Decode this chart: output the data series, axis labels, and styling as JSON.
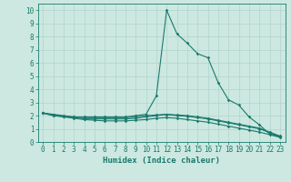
{
  "xlabel": "Humidex (Indice chaleur)",
  "xlim": [
    -0.5,
    23.5
  ],
  "ylim": [
    0,
    10.5
  ],
  "xticks": [
    0,
    1,
    2,
    3,
    4,
    5,
    6,
    7,
    8,
    9,
    10,
    11,
    12,
    13,
    14,
    15,
    16,
    17,
    18,
    19,
    20,
    21,
    22,
    23
  ],
  "yticks": [
    0,
    1,
    2,
    3,
    4,
    5,
    6,
    7,
    8,
    9,
    10
  ],
  "background_color": "#cce8e0",
  "plot_bg_color": "#cce8e0",
  "line_color": "#1a7a6e",
  "grid_color": "#b0d4cc",
  "line1_x": [
    0,
    1,
    2,
    3,
    4,
    5,
    6,
    7,
    8,
    9,
    10,
    11,
    12,
    13,
    14,
    15,
    16,
    17,
    18,
    19,
    20,
    21,
    22,
    23
  ],
  "line1_y": [
    2.2,
    2.1,
    2.0,
    1.9,
    1.9,
    1.9,
    1.9,
    1.9,
    1.9,
    2.0,
    2.1,
    3.5,
    10.0,
    8.2,
    7.5,
    6.7,
    6.4,
    4.5,
    3.2,
    2.8,
    1.9,
    1.3,
    0.6,
    0.4
  ],
  "line2_x": [
    0,
    1,
    2,
    3,
    4,
    5,
    6,
    7,
    8,
    9,
    10,
    11,
    12,
    13,
    14,
    15,
    16,
    17,
    18,
    19,
    20,
    21,
    22,
    23
  ],
  "line2_y": [
    2.2,
    2.0,
    1.95,
    1.85,
    1.75,
    1.75,
    1.75,
    1.75,
    1.75,
    1.8,
    1.9,
    2.0,
    2.1,
    2.0,
    1.95,
    1.85,
    1.75,
    1.6,
    1.45,
    1.3,
    1.15,
    1.0,
    0.7,
    0.4
  ],
  "line3_x": [
    0,
    1,
    2,
    3,
    4,
    5,
    6,
    7,
    8,
    9,
    10,
    11,
    12,
    13,
    14,
    15,
    16,
    17,
    18,
    19,
    20,
    21,
    22,
    23
  ],
  "line3_y": [
    2.2,
    2.0,
    1.9,
    1.8,
    1.7,
    1.65,
    1.6,
    1.6,
    1.6,
    1.65,
    1.7,
    1.8,
    1.85,
    1.8,
    1.7,
    1.6,
    1.5,
    1.35,
    1.2,
    1.05,
    0.9,
    0.75,
    0.55,
    0.35
  ],
  "line4_x": [
    0,
    1,
    2,
    3,
    4,
    5,
    6,
    7,
    8,
    9,
    10,
    11,
    12,
    13,
    14,
    15,
    16,
    17,
    18,
    19,
    20,
    21,
    22,
    23
  ],
  "line4_y": [
    2.2,
    2.05,
    1.95,
    1.9,
    1.85,
    1.85,
    1.85,
    1.85,
    1.85,
    1.9,
    2.0,
    2.05,
    2.1,
    2.05,
    2.0,
    1.9,
    1.8,
    1.65,
    1.5,
    1.35,
    1.2,
    1.05,
    0.75,
    0.45
  ],
  "marker": "D",
  "markersize": 1.8,
  "linewidth": 0.8,
  "tick_fontsize": 5.5,
  "label_fontsize": 6.5
}
